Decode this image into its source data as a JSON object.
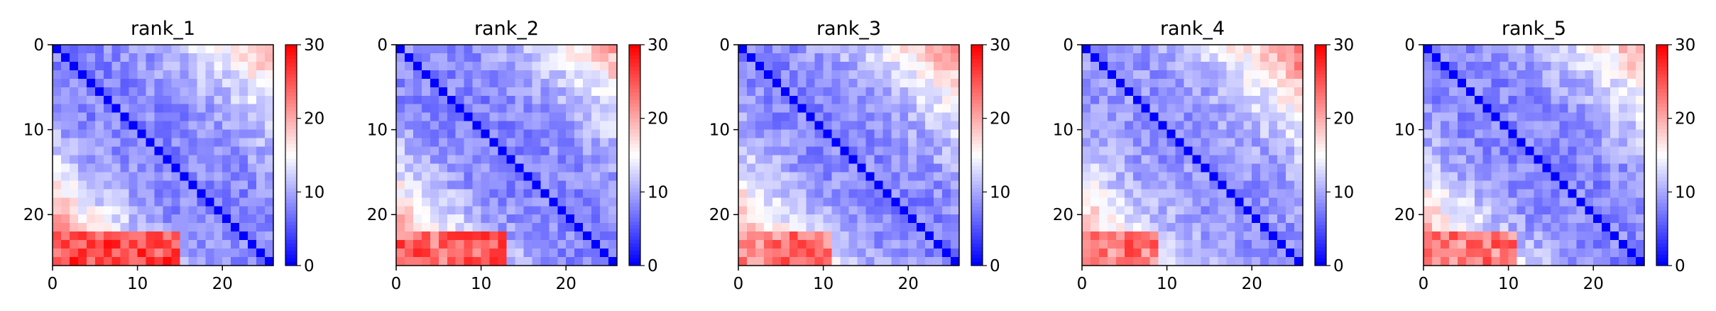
{
  "chart_data": [
    {
      "type": "heatmap",
      "title": "rank_1",
      "size": 26,
      "x_ticks": [
        0,
        10,
        20
      ],
      "y_ticks": [
        0,
        10,
        20
      ],
      "colorbar": {
        "min": 0,
        "max": 30,
        "ticks": [
          0,
          10,
          20,
          30
        ],
        "colormap": "bwr"
      },
      "corners": {
        "top_right": 20,
        "bottom_left": 28,
        "near_diag": 8,
        "mid_band": 12
      },
      "lower_left_block": {
        "rows": [
          22,
          25
        ],
        "cols": [
          0,
          14
        ],
        "value": 26
      }
    },
    {
      "type": "heatmap",
      "title": "rank_2",
      "size": 26,
      "x_ticks": [
        0,
        10,
        20
      ],
      "y_ticks": [
        0,
        10,
        20
      ],
      "colorbar": {
        "min": 0,
        "max": 30,
        "ticks": [
          0,
          10,
          20,
          30
        ],
        "colormap": "bwr"
      },
      "corners": {
        "top_right": 20,
        "bottom_left": 26,
        "near_diag": 8,
        "mid_band": 12
      },
      "lower_left_block": {
        "rows": [
          22,
          25
        ],
        "cols": [
          0,
          12
        ],
        "value": 24
      }
    },
    {
      "type": "heatmap",
      "title": "rank_3",
      "size": 26,
      "x_ticks": [
        0,
        10,
        20
      ],
      "y_ticks": [
        0,
        10,
        20
      ],
      "colorbar": {
        "min": 0,
        "max": 30,
        "ticks": [
          0,
          10,
          20,
          30
        ],
        "colormap": "bwr"
      },
      "corners": {
        "top_right": 22,
        "bottom_left": 26,
        "near_diag": 8,
        "mid_band": 13
      },
      "lower_left_block": {
        "rows": [
          22,
          25
        ],
        "cols": [
          0,
          10
        ],
        "value": 23
      }
    },
    {
      "type": "heatmap",
      "title": "rank_4",
      "size": 26,
      "x_ticks": [
        0,
        10,
        20
      ],
      "y_ticks": [
        0,
        10,
        20
      ],
      "colorbar": {
        "min": 0,
        "max": 30,
        "ticks": [
          0,
          10,
          20,
          30
        ],
        "colormap": "bwr"
      },
      "corners": {
        "top_right": 24,
        "bottom_left": 25,
        "near_diag": 9,
        "mid_band": 13
      },
      "lower_left_block": {
        "rows": [
          22,
          25
        ],
        "cols": [
          0,
          8
        ],
        "value": 23
      }
    },
    {
      "type": "heatmap",
      "title": "rank_5",
      "size": 26,
      "x_ticks": [
        0,
        10,
        20
      ],
      "y_ticks": [
        0,
        10,
        20
      ],
      "colorbar": {
        "min": 0,
        "max": 30,
        "ticks": [
          0,
          10,
          20,
          30
        ],
        "colormap": "bwr"
      },
      "corners": {
        "top_right": 20,
        "bottom_left": 25,
        "near_diag": 8,
        "mid_band": 12
      },
      "lower_left_block": {
        "rows": [
          22,
          25
        ],
        "cols": [
          0,
          10
        ],
        "value": 23
      }
    }
  ]
}
